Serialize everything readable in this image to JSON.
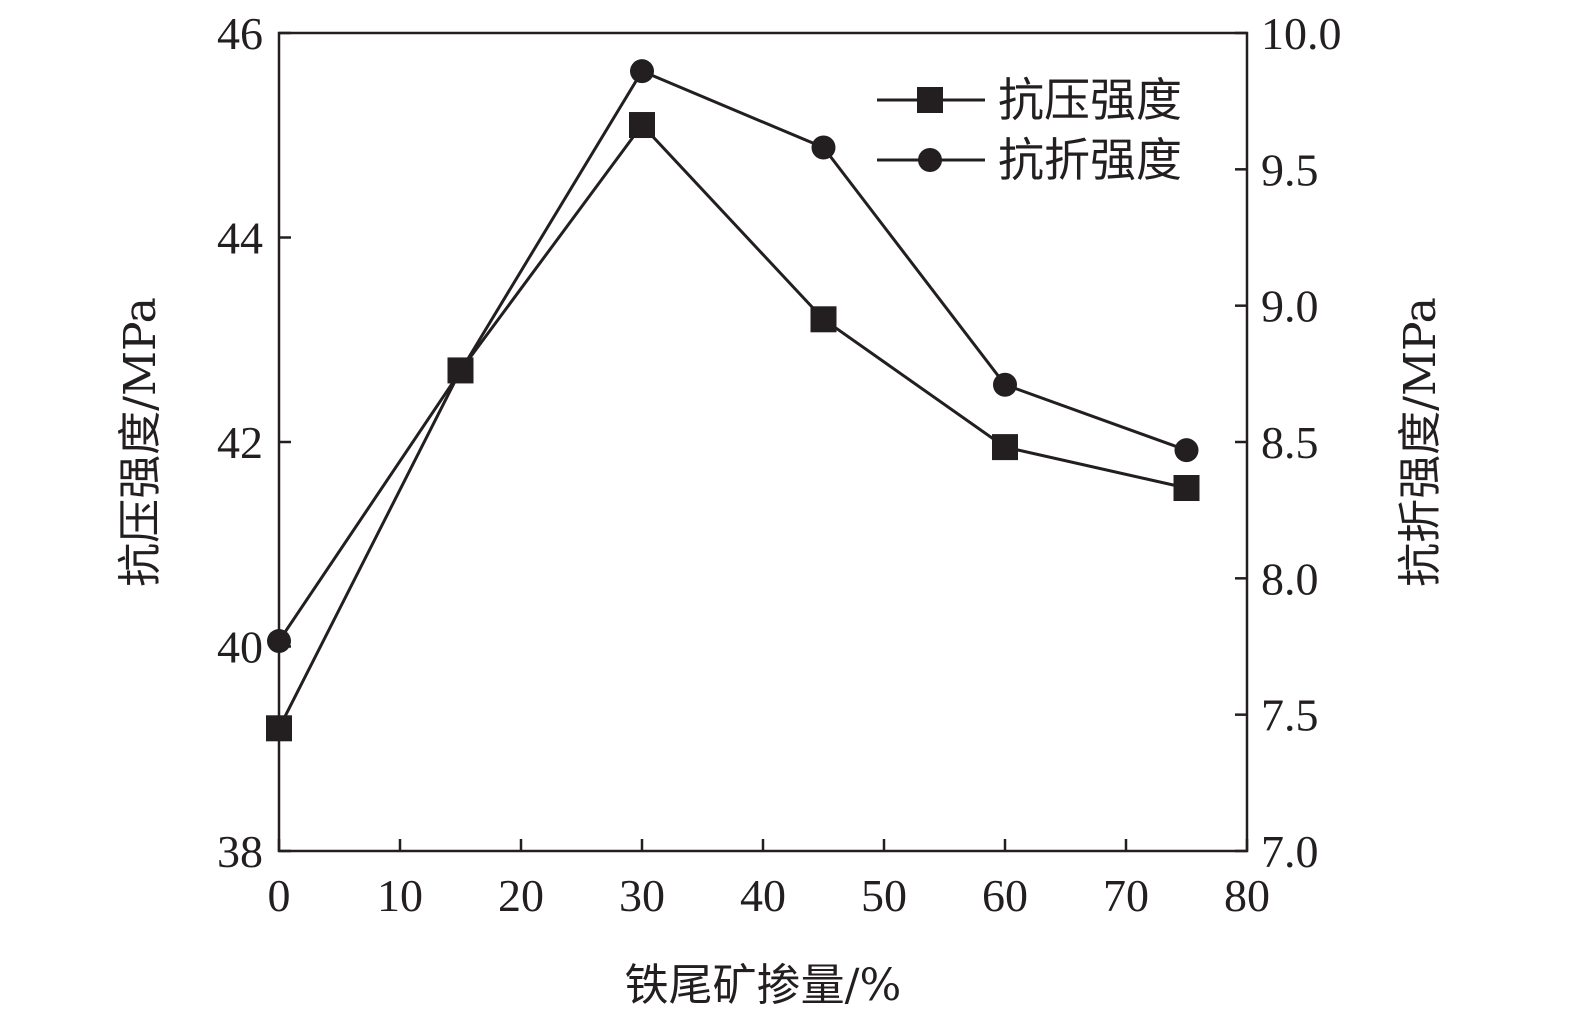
{
  "chart_data": {
    "type": "line",
    "title": "",
    "xlabel": "铁尾矿掺量/%",
    "ylabel_left": "抗压强度/MPa",
    "ylabel_right": "抗折强度/MPa",
    "xlim": [
      0,
      80
    ],
    "ylim_left": [
      38,
      46
    ],
    "ylim_right": [
      7.0,
      10.0
    ],
    "x_ticks": [
      0,
      10,
      20,
      30,
      40,
      50,
      60,
      70,
      80
    ],
    "x_tick_labels": [
      "0",
      "10",
      "20",
      "30",
      "40",
      "50",
      "60",
      "70",
      "80"
    ],
    "y_left_ticks": [
      38,
      40,
      42,
      44,
      46
    ],
    "y_left_tick_labels": [
      "38",
      "40",
      "42",
      "44",
      "46"
    ],
    "y_right_ticks": [
      7.0,
      7.5,
      8.0,
      8.5,
      9.0,
      9.5,
      10.0
    ],
    "y_right_tick_labels": [
      "7.0",
      "7.5",
      "8.0",
      "8.5",
      "9.0",
      "9.5",
      "10.0"
    ],
    "grid": false,
    "legend_position": "top-right",
    "series": [
      {
        "name": "抗压强度",
        "axis": "left",
        "marker": "square",
        "x": [
          0,
          15,
          30,
          45,
          60,
          75
        ],
        "values": [
          39.2,
          42.7,
          45.1,
          43.2,
          41.95,
          41.55
        ]
      },
      {
        "name": "抗折强度",
        "axis": "right",
        "marker": "circle",
        "x": [
          0,
          15,
          30,
          45,
          60,
          75
        ],
        "values": [
          7.77,
          8.76,
          9.86,
          9.58,
          8.71,
          8.47
        ]
      }
    ],
    "colors": {
      "ink": "#231f20",
      "background": "#ffffff"
    }
  }
}
